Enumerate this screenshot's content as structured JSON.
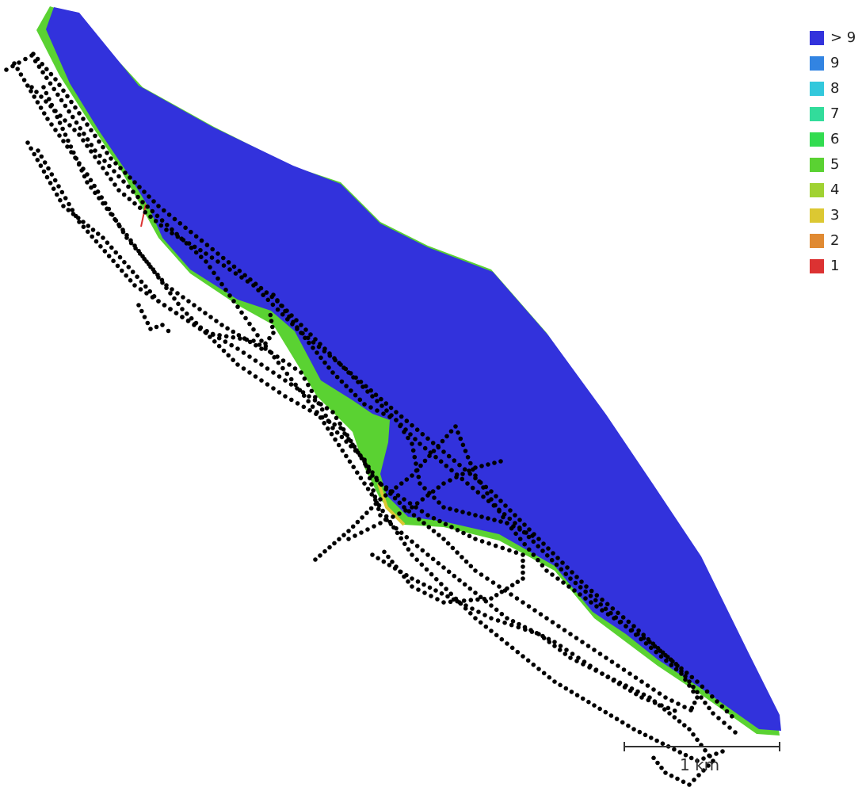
{
  "legend": {
    "items": [
      {
        "label": "> 9",
        "color": "#3232dc"
      },
      {
        "label": "9",
        "color": "#3284e2"
      },
      {
        "label": "8",
        "color": "#32c8dc"
      },
      {
        "label": "7",
        "color": "#32dc9b"
      },
      {
        "label": "6",
        "color": "#32dc50"
      },
      {
        "label": "5",
        "color": "#5ad232"
      },
      {
        "label": "4",
        "color": "#a0d232"
      },
      {
        "label": "3",
        "color": "#dcc832"
      },
      {
        "label": "2",
        "color": "#e08a32"
      },
      {
        "label": "1",
        "color": "#dc3232"
      }
    ]
  },
  "scale_bar": {
    "label": "1 km"
  },
  "colors": {
    "coverage_main": "#3232dc",
    "coverage_edge_light": "#32c8dc",
    "coverage_edge_green": "#5ad232",
    "coverage_edge_yellow": "#dcc832",
    "coverage_edge_red": "#dc3232",
    "track": "#000000"
  }
}
